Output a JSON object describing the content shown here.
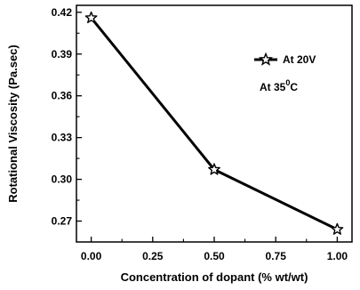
{
  "chart_data": {
    "type": "line",
    "xlabel": "Concentration of dopant (% wt/wt)",
    "ylabel": "Rotational Viscosity (Pa.sec)",
    "xlim": [
      -0.06,
      1.06
    ],
    "ylim": [
      0.255,
      0.425
    ],
    "xticks": [
      "0.00",
      "0.25",
      "0.50",
      "0.75",
      "1.00"
    ],
    "yticks": [
      "0.27",
      "0.30",
      "0.33",
      "0.36",
      "0.39",
      "0.42"
    ],
    "series": [
      {
        "name": "At 20V",
        "marker": "star",
        "color": "#000000",
        "x": [
          0.0,
          0.5,
          1.0
        ],
        "y": [
          0.416,
          0.307,
          0.264
        ]
      }
    ],
    "legend_position": "top-right",
    "annotation": {
      "text": "At 35",
      "superscript": "0",
      "suffix": "C"
    },
    "grid": false
  }
}
